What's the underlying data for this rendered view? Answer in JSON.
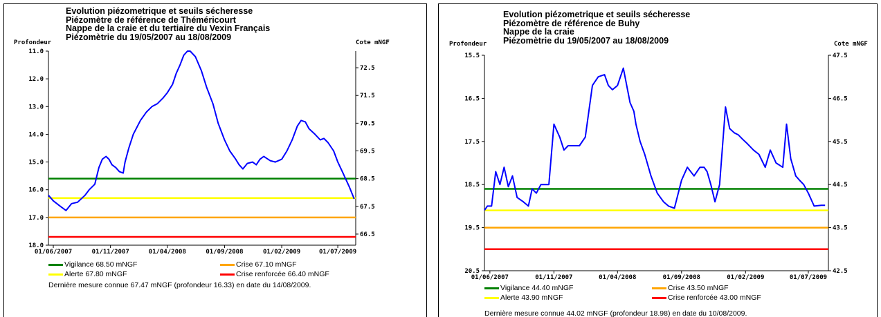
{
  "panels": [
    {
      "title_lines": [
        "Evolution piézometrique et seuils sécheresse",
        "Piézomètre de référence de Théméricourt",
        "Nappe de la craie et du tertiaire du Vexin Français",
        "Piézomètrie du 19/05/2007 au 18/08/2009"
      ],
      "left_axis_label": "Profondeur",
      "right_axis_label": "Cote mNGF",
      "legend": [
        {
          "label": "Vigilance 68.50 mNGF",
          "color": "#008000"
        },
        {
          "label": "Crise 67.10 mNGF",
          "color": "#ffa500"
        },
        {
          "label": "Alerte 67.80 mNGF",
          "color": "#ffff00"
        },
        {
          "label": "Crise renforcée 66.40 mNGF",
          "color": "#ff0000"
        }
      ],
      "footnote": "Dernière mesure connue 67.47 mNGF (profondeur  16.33) en date du 14/08/2009."
    },
    {
      "title_lines": [
        "Evolution piézometrique et seuils sécheresse",
        "Piézomètre de référence de Buhy",
        "Nappe de la craie",
        "Piézomètrie du 19/05/2007 au 18/08/2009"
      ],
      "left_axis_label": "Profondeur",
      "right_axis_label": "Cote mNGF",
      "legend": [
        {
          "label": "Vigilance 44.40 mNGF",
          "color": "#008000"
        },
        {
          "label": "Crise 43.50 mNGF",
          "color": "#ffa500"
        },
        {
          "label": "Alerte 43.90 mNGF",
          "color": "#ffff00"
        },
        {
          "label": "Crise renforcée 43.00 mNGF",
          "color": "#ff0000"
        }
      ],
      "footnote": "Dernière mesure connue 44.02 mNGF (profondeur  18.98) en date du 10/08/2009."
    }
  ],
  "chart_data": [
    {
      "type": "line",
      "title": "Evolution piézometrique et seuils sécheresse",
      "xlabel": "",
      "ylabel": "Profondeur",
      "y2label": "Cote mNGF",
      "x_ticks": [
        "01/06/2007",
        "01/11/2007",
        "01/04/2008",
        "01/09/2008",
        "01/02/2009",
        "01/07/2009"
      ],
      "xlim": [
        "2007-05-19",
        "2009-08-18"
      ],
      "ylim_left": [
        11.0,
        18.0
      ],
      "y_ticks_left": [
        "11.0",
        "12.0",
        "13.0",
        "14.0",
        "15.0",
        "16.0",
        "17.0",
        "18.0"
      ],
      "ylim_right": [
        66.1,
        73.1
      ],
      "y_ticks_right": [
        "72.5",
        "71.5",
        "70.5",
        "69.5",
        "68.5",
        "67.5",
        "66.5"
      ],
      "thresholds": [
        {
          "level_mngf": 68.5,
          "color": "#008000"
        },
        {
          "level_mngf": 67.8,
          "color": "#ffff00"
        },
        {
          "level_mngf": 67.1,
          "color": "#ffa500"
        },
        {
          "level_mngf": 66.4,
          "color": "#ff0000"
        }
      ],
      "series": [
        {
          "color": "#0000ff",
          "x": [
            "2007-05-19",
            "2007-06-01",
            "2007-06-20",
            "2007-07-05",
            "2007-07-20",
            "2007-08-05",
            "2007-08-25",
            "2007-09-05",
            "2007-09-20",
            "2007-10-01",
            "2007-10-10",
            "2007-10-20",
            "2007-10-28",
            "2007-11-05",
            "2007-11-15",
            "2007-11-25",
            "2007-12-05",
            "2007-12-10",
            "2007-12-20",
            "2008-01-01",
            "2008-01-20",
            "2008-02-05",
            "2008-02-20",
            "2008-03-05",
            "2008-03-20",
            "2008-04-01",
            "2008-04-15",
            "2008-04-25",
            "2008-05-05",
            "2008-05-15",
            "2008-05-25",
            "2008-06-01",
            "2008-06-15",
            "2008-07-01",
            "2008-07-15",
            "2008-08-01",
            "2008-08-15",
            "2008-09-01",
            "2008-09-15",
            "2008-10-01",
            "2008-10-10",
            "2008-10-20",
            "2008-11-01",
            "2008-11-15",
            "2008-11-25",
            "2008-12-05",
            "2008-12-15",
            "2009-01-01",
            "2009-01-15",
            "2009-02-01",
            "2009-02-15",
            "2009-03-01",
            "2009-03-15",
            "2009-03-25",
            "2009-04-05",
            "2009-04-15",
            "2009-05-01",
            "2009-05-15",
            "2009-05-25",
            "2009-06-05",
            "2009-06-20",
            "2009-07-01",
            "2009-07-15",
            "2009-08-01",
            "2009-08-14"
          ],
          "values": [
            16.2,
            16.4,
            16.6,
            16.75,
            16.5,
            16.45,
            16.2,
            16.0,
            15.8,
            15.2,
            14.9,
            14.8,
            14.9,
            15.1,
            15.2,
            15.35,
            15.4,
            15.0,
            14.5,
            14.0,
            13.5,
            13.2,
            13.0,
            12.9,
            12.7,
            12.5,
            12.2,
            11.8,
            11.5,
            11.15,
            11.0,
            11.0,
            11.2,
            11.7,
            12.3,
            12.9,
            13.6,
            14.2,
            14.6,
            14.9,
            15.1,
            15.25,
            15.05,
            15.0,
            15.1,
            14.9,
            14.8,
            14.95,
            15.0,
            14.9,
            14.6,
            14.2,
            13.7,
            13.5,
            13.55,
            13.8,
            14.0,
            14.2,
            14.15,
            14.3,
            14.6,
            15.0,
            15.4,
            15.9,
            16.33
          ]
        }
      ]
    },
    {
      "type": "line",
      "title": "Evolution piézometrique et seuils sécheresse",
      "xlabel": "",
      "ylabel": "Profondeur",
      "y2label": "Cote mNGF",
      "x_ticks": [
        "01/06/2007",
        "01/11/2007",
        "01/04/2008",
        "01/09/2008",
        "01/02/2009",
        "01/07/2009"
      ],
      "xlim": [
        "2007-05-19",
        "2009-08-18"
      ],
      "ylim_left": [
        15.5,
        20.5
      ],
      "y_ticks_left": [
        "15.5",
        "16.5",
        "17.5",
        "18.5",
        "19.5",
        "20.5"
      ],
      "ylim_right": [
        42.5,
        47.5
      ],
      "y_ticks_right": [
        "47.5",
        "46.5",
        "45.5",
        "44.5",
        "43.5",
        "42.5"
      ],
      "thresholds": [
        {
          "level_mngf": 44.4,
          "color": "#008000"
        },
        {
          "level_mngf": 43.9,
          "color": "#ffff00"
        },
        {
          "level_mngf": 43.5,
          "color": "#ffa500"
        },
        {
          "level_mngf": 43.0,
          "color": "#ff0000"
        }
      ],
      "series": [
        {
          "color": "#0000ff",
          "x": [
            "2007-05-19",
            "2007-05-26",
            "2007-06-05",
            "2007-06-15",
            "2007-06-25",
            "2007-07-05",
            "2007-07-15",
            "2007-07-25",
            "2007-08-05",
            "2007-08-20",
            "2007-09-01",
            "2007-09-10",
            "2007-09-20",
            "2007-10-01",
            "2007-10-10",
            "2007-10-20",
            "2007-11-01",
            "2007-11-15",
            "2007-11-25",
            "2007-12-05",
            "2007-12-15",
            "2008-01-01",
            "2008-01-15",
            "2008-02-01",
            "2008-02-15",
            "2008-03-01",
            "2008-03-10",
            "2008-03-20",
            "2008-04-01",
            "2008-04-15",
            "2008-05-01",
            "2008-05-10",
            "2008-05-15",
            "2008-05-25",
            "2008-06-05",
            "2008-06-20",
            "2008-07-05",
            "2008-07-20",
            "2008-08-01",
            "2008-08-15",
            "2008-09-01",
            "2008-09-15",
            "2008-10-01",
            "2008-10-15",
            "2008-10-25",
            "2008-11-01",
            "2008-11-10",
            "2008-11-20",
            "2008-12-01",
            "2008-12-15",
            "2008-12-25",
            "2009-01-05",
            "2009-01-15",
            "2009-01-25",
            "2009-02-05",
            "2009-02-20",
            "2009-03-05",
            "2009-03-20",
            "2009-04-01",
            "2009-04-15",
            "2009-05-01",
            "2009-05-10",
            "2009-05-20",
            "2009-06-01",
            "2009-06-10",
            "2009-06-20",
            "2009-07-01",
            "2009-07-15",
            "2009-08-01",
            "2009-08-10"
          ],
          "values": [
            19.1,
            19.0,
            19.0,
            18.2,
            18.5,
            18.1,
            18.55,
            18.3,
            18.8,
            18.9,
            19.0,
            18.6,
            18.7,
            18.5,
            18.5,
            18.5,
            17.1,
            17.4,
            17.7,
            17.6,
            17.6,
            17.6,
            17.4,
            16.2,
            16.0,
            15.95,
            16.2,
            16.3,
            16.2,
            15.8,
            16.6,
            16.8,
            17.1,
            17.5,
            17.8,
            18.3,
            18.7,
            18.9,
            19.0,
            19.05,
            18.4,
            18.1,
            18.3,
            18.1,
            18.1,
            18.2,
            18.5,
            18.9,
            18.5,
            16.7,
            17.2,
            17.3,
            17.35,
            17.45,
            17.55,
            17.7,
            17.8,
            18.1,
            17.7,
            18.0,
            18.1,
            17.1,
            17.9,
            18.3,
            18.4,
            18.5,
            18.7,
            19.0,
            18.98,
            18.98
          ]
        }
      ]
    }
  ]
}
